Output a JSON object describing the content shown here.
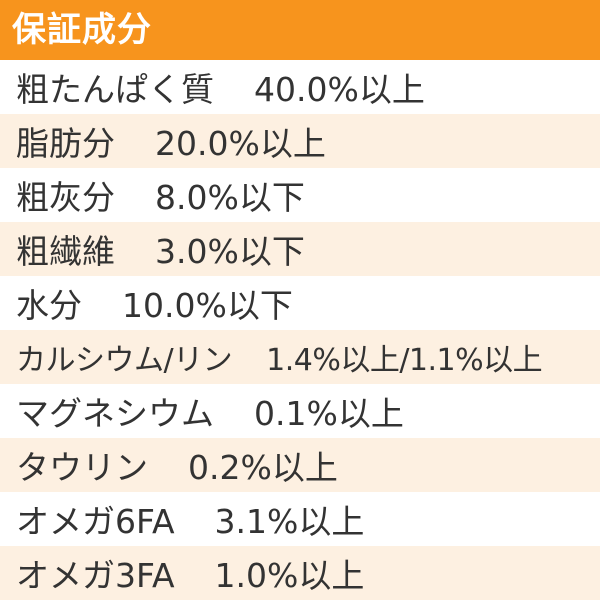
{
  "header": {
    "title": "保証成分",
    "color": "#f7941d"
  },
  "rows": [
    {
      "name": "粗たんぱく質",
      "value": "40.0%以上"
    },
    {
      "name": "脂肪分",
      "value": "20.0%以上"
    },
    {
      "name": "粗灰分",
      "value": "8.0%以下"
    },
    {
      "name": "粗繊維",
      "value": "3.0%以下"
    },
    {
      "name": "水分",
      "value": "10.0%以下"
    },
    {
      "name": "カルシウム/リン",
      "value": "1.4%以上/1.1%以上"
    },
    {
      "name": "マグネシウム",
      "value": "0.1%以上"
    },
    {
      "name": "タウリン",
      "value": "0.2%以上"
    },
    {
      "name": "オメガ6FA",
      "value": "3.1%以上"
    },
    {
      "name": "オメガ3FA",
      "value": "1.0%以上"
    }
  ],
  "colors": {
    "stripe": "#fdf0e1",
    "text": "#333333"
  }
}
